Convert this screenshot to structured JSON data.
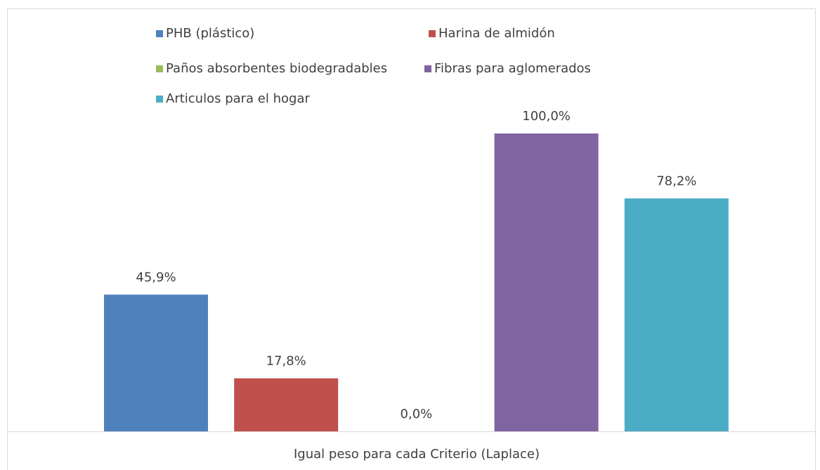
{
  "chart_data": {
    "type": "bar",
    "categories": [
      "Igual peso para cada Criterio (Laplace)"
    ],
    "series": [
      {
        "name": "PHB (plástico)",
        "color": "#4f81bd",
        "values": [
          45.9
        ],
        "value_labels": [
          "45,9%"
        ]
      },
      {
        "name": "Harina de almidón",
        "color": "#c0504d",
        "values": [
          17.8
        ],
        "value_labels": [
          "17,8%"
        ]
      },
      {
        "name": "Paños absorbentes biodegradables",
        "color": "#9bbb59",
        "values": [
          0.0
        ],
        "value_labels": [
          "0,0%"
        ]
      },
      {
        "name": "Fibras para aglomerados",
        "color": "#8064a2",
        "values": [
          100.0
        ],
        "value_labels": [
          "100,0%"
        ]
      },
      {
        "name": "Articulos para el hogar",
        "color": "#4bacc6",
        "values": [
          78.2
        ],
        "value_labels": [
          "78,2%"
        ]
      }
    ],
    "legend": "top"
  }
}
